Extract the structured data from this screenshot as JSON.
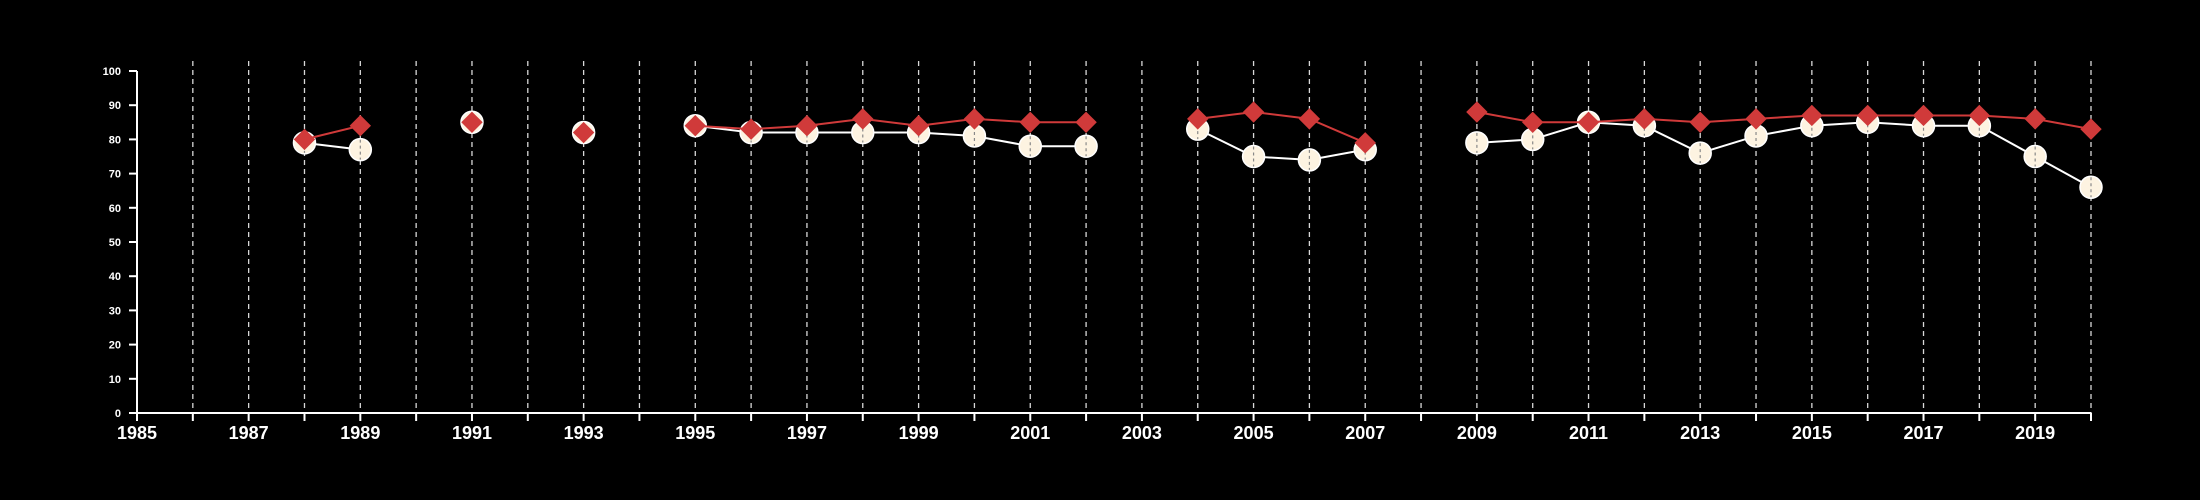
{
  "chart_data": {
    "type": "line",
    "title": "",
    "xlabel": "",
    "ylabel": "",
    "xlim": [
      1985,
      2020
    ],
    "ylim": [
      0,
      100
    ],
    "x_ticks": [
      1985,
      1986,
      1987,
      1988,
      1989,
      1990,
      1991,
      1992,
      1993,
      1994,
      1995,
      1996,
      1997,
      1998,
      1999,
      2000,
      2001,
      2002,
      2003,
      2004,
      2005,
      2006,
      2007,
      2008,
      2009,
      2010,
      2011,
      2012,
      2013,
      2014,
      2015,
      2016,
      2017,
      2018,
      2019,
      2020
    ],
    "x_tick_labels": [
      "1985",
      "1987",
      "1989",
      "1991",
      "1993",
      "1995",
      "1997",
      "1999",
      "2001",
      "2003",
      "2005",
      "2007",
      "2009",
      "2011",
      "2013",
      "2015",
      "2017",
      "2019"
    ],
    "y_ticks": [
      0,
      10,
      20,
      30,
      40,
      50,
      60,
      70,
      80,
      90,
      100
    ],
    "y_tick_labels": [
      "0",
      "10",
      "20",
      "30",
      "40",
      "50",
      "60",
      "70",
      "80",
      "90",
      "100"
    ],
    "vertical_grid": true,
    "legend": "none",
    "series": [
      {
        "marker": "circle",
        "color": "#ffffff",
        "fill": "#fdf3e1",
        "segments": [
          [
            [
              1988,
              79
            ],
            [
              1989,
              77
            ]
          ],
          [
            [
              1991,
              85
            ]
          ],
          [
            [
              1993,
              82
            ]
          ],
          [
            [
              1995,
              84
            ],
            [
              1996,
              82
            ],
            [
              1997,
              82
            ],
            [
              1998,
              82
            ],
            [
              1999,
              82
            ],
            [
              2000,
              81
            ],
            [
              2001,
              78
            ],
            [
              2002,
              78
            ]
          ],
          [
            [
              2004,
              83
            ],
            [
              2005,
              75
            ],
            [
              2006,
              74
            ],
            [
              2007,
              77
            ]
          ],
          [
            [
              2009,
              79
            ],
            [
              2010,
              80
            ],
            [
              2011,
              85
            ],
            [
              2012,
              84
            ],
            [
              2013,
              76
            ],
            [
              2014,
              81
            ],
            [
              2015,
              84
            ],
            [
              2016,
              85
            ],
            [
              2017,
              84
            ],
            [
              2018,
              84
            ],
            [
              2019,
              75
            ],
            [
              2020,
              66
            ]
          ]
        ]
      },
      {
        "marker": "diamond",
        "color": "#d03a3a",
        "fill": "#d03a3a",
        "segments": [
          [
            [
              1988,
              80
            ],
            [
              1989,
              84
            ]
          ],
          [
            [
              1991,
              85
            ]
          ],
          [
            [
              1993,
              82
            ]
          ],
          [
            [
              1995,
              84
            ],
            [
              1996,
              83
            ],
            [
              1997,
              84
            ],
            [
              1998,
              86
            ],
            [
              1999,
              84
            ],
            [
              2000,
              86
            ],
            [
              2001,
              85
            ],
            [
              2002,
              85
            ]
          ],
          [
            [
              2004,
              86
            ],
            [
              2005,
              88
            ],
            [
              2006,
              86
            ],
            [
              2007,
              79
            ]
          ],
          [
            [
              2009,
              88
            ],
            [
              2010,
              85
            ],
            [
              2011,
              85
            ],
            [
              2012,
              86
            ],
            [
              2013,
              85
            ],
            [
              2014,
              86
            ],
            [
              2015,
              87
            ],
            [
              2016,
              87
            ],
            [
              2017,
              87
            ],
            [
              2018,
              87
            ],
            [
              2019,
              86
            ],
            [
              2020,
              83
            ]
          ]
        ]
      }
    ]
  }
}
